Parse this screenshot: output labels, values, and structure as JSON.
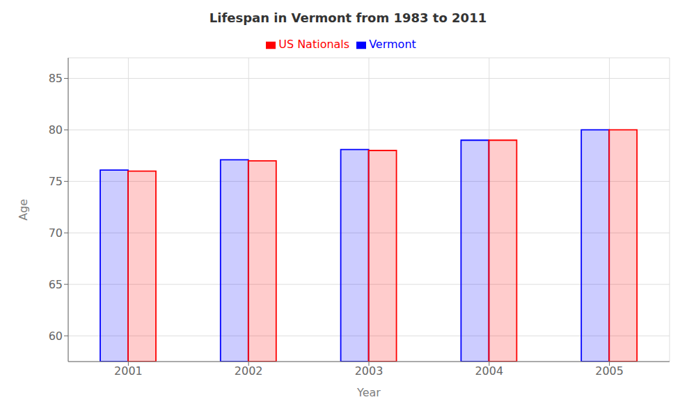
{
  "chart_data": {
    "type": "bar",
    "title": "Lifespan in Vermont from 1983 to 2011",
    "x_label": "Year",
    "y_label": "Age",
    "categories": [
      "2001",
      "2002",
      "2003",
      "2004",
      "2005"
    ],
    "series": [
      {
        "name": "Vermont",
        "color": "#0000ff",
        "values": [
          76.1,
          77.1,
          78.1,
          79.0,
          80.0
        ]
      },
      {
        "name": "US Nationals",
        "color": "#ff0000",
        "values": [
          76.0,
          77.0,
          78.0,
          79.0,
          80.0
        ]
      }
    ],
    "ylim": [
      57.5,
      87
    ],
    "yticks": [
      60,
      65,
      70,
      75,
      80,
      85
    ],
    "grid": true,
    "legend": "top"
  }
}
